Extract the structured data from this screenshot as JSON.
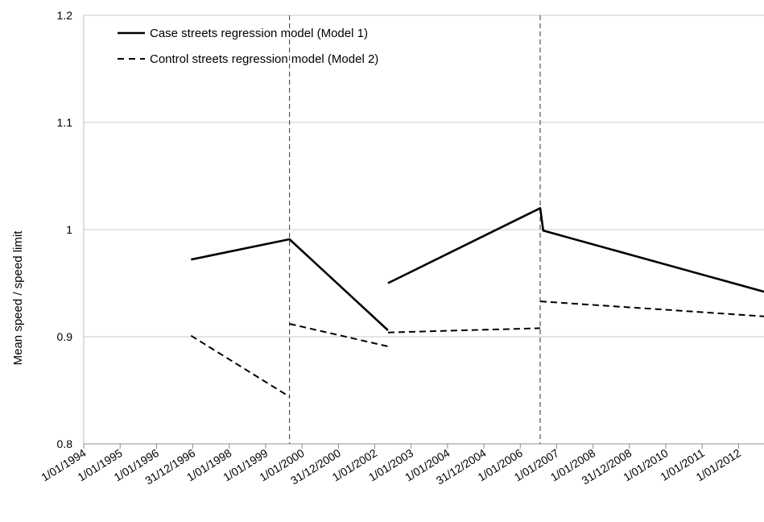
{
  "chart_data": {
    "type": "line",
    "title": "",
    "xlabel": "",
    "ylabel": "Mean speed / speed limit",
    "ylim": [
      0.8,
      1.2
    ],
    "yticks": [
      "0.8",
      "0.9",
      "1",
      "1.1",
      "1.2"
    ],
    "grid": "horizontal",
    "legend_position": "top-left",
    "x_tick_labels": [
      "1/01/1994",
      "1/01/1995",
      "1/01/1996",
      "31/12/1996",
      "1/01/1998",
      "1/01/1999",
      "1/01/2000",
      "31/12/2000",
      "1/01/2002",
      "1/01/2003",
      "1/01/2004",
      "31/12/2004",
      "1/01/2006",
      "1/01/2007",
      "1/01/2008",
      "31/12/2008",
      "1/01/2010",
      "1/01/2011",
      "1/01/2012"
    ],
    "intervention_lines": [
      {
        "x": "1/10/1999",
        "style": "dashed"
      },
      {
        "x": "1/10/2006",
        "style": "dashed"
      }
    ],
    "series": [
      {
        "name": "Case streets regression model (Model 1)",
        "style": "solid",
        "color": "#000000",
        "segments": [
          [
            [
              "31/12/1996",
              0.972
            ],
            [
              "1/10/1999",
              0.991
            ],
            [
              "1/07/2002",
              0.906
            ]
          ],
          [
            [
              "1/07/2002",
              0.95
            ],
            [
              "1/10/2006",
              1.02
            ],
            [
              "1/11/2006",
              0.999
            ],
            [
              "31/12/2012",
              0.942
            ]
          ]
        ]
      },
      {
        "name": "Control streets regression model (Model 2)",
        "style": "dashed",
        "color": "#000000",
        "segments": [
          [
            [
              "31/12/1996",
              0.901
            ],
            [
              "1/10/1999",
              0.844
            ]
          ],
          [
            [
              "1/10/1999",
              0.912
            ],
            [
              "1/07/2002",
              0.891
            ]
          ],
          [
            [
              "1/07/2002",
              0.904
            ],
            [
              "1/10/2006",
              0.908
            ]
          ],
          [
            [
              "1/10/2006",
              0.933
            ],
            [
              "31/12/2012",
              0.919
            ]
          ]
        ]
      }
    ]
  }
}
